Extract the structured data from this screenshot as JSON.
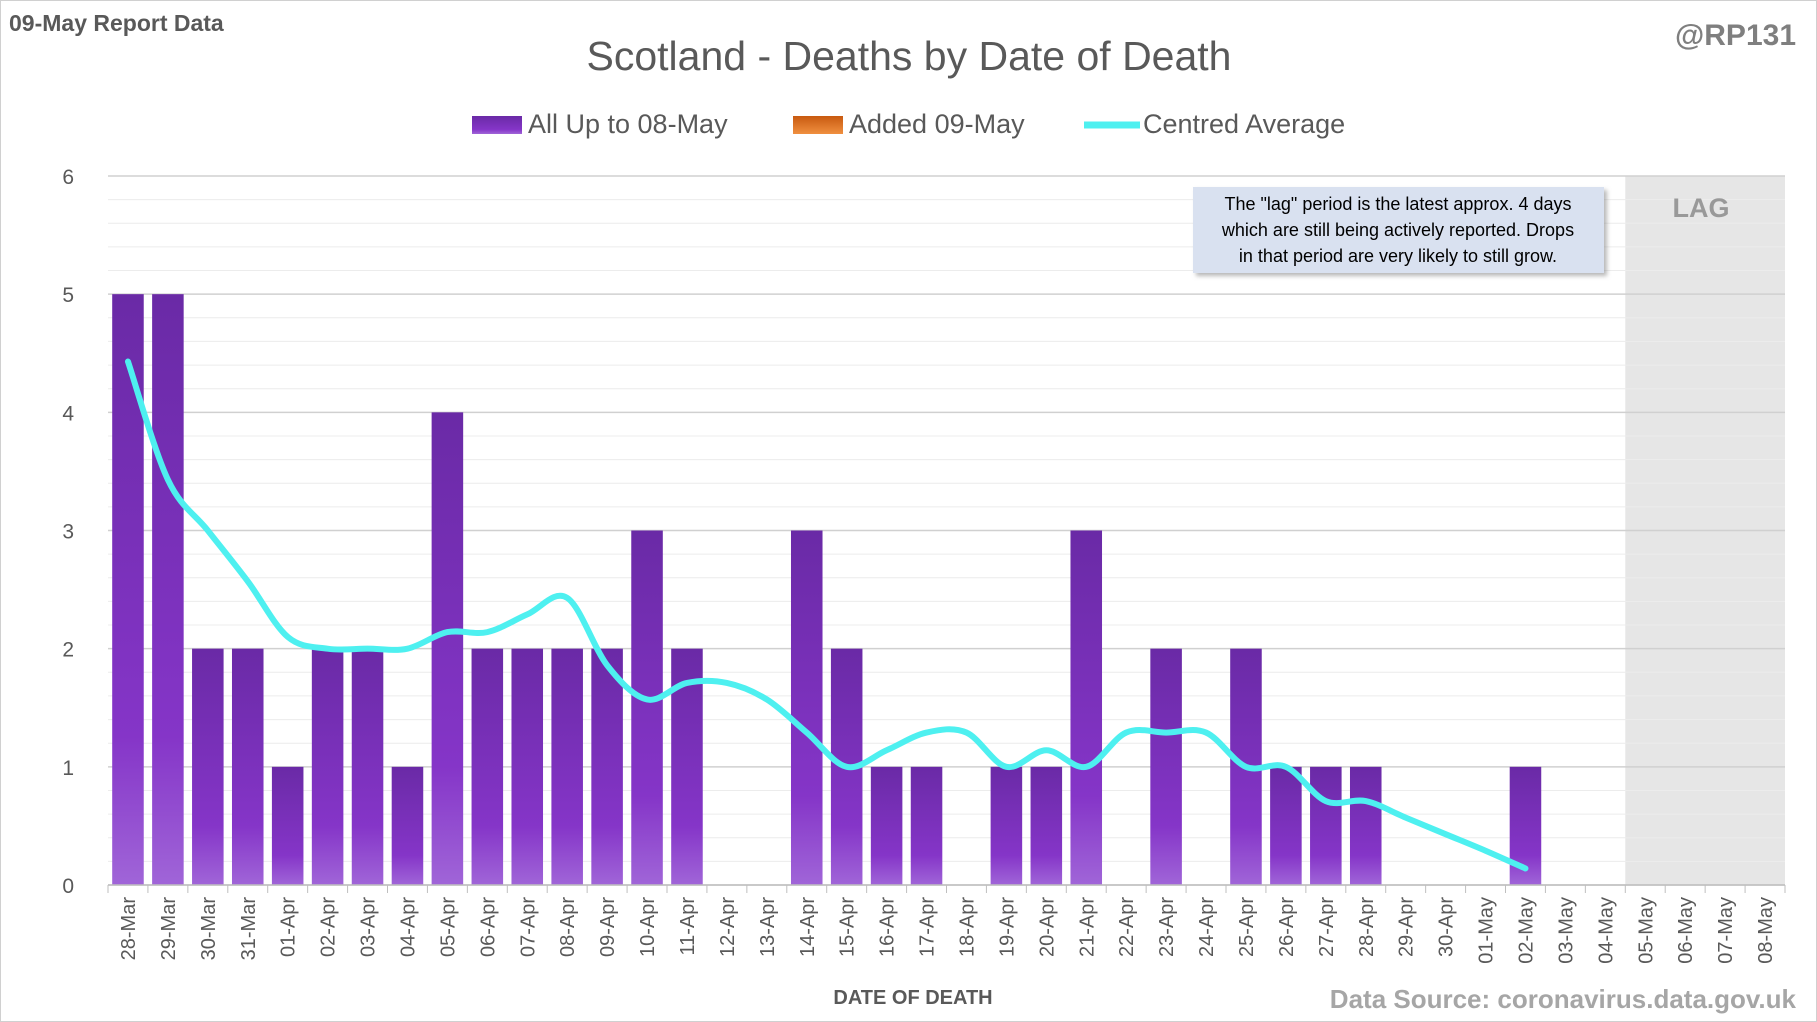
{
  "header": {
    "report_label": "09-May Report Data",
    "handle": "@RP131",
    "source": "Data Source: coronavirus.data.gov.uk"
  },
  "note": {
    "lines": [
      "The \"lag\" period is the latest approx. 4 days",
      "which are still being actively reported.  Drops",
      "in that period are very likely to still grow."
    ],
    "lag_label": "LAG"
  },
  "chart_data": {
    "type": "bar",
    "title": "Scotland - Deaths by Date of Death",
    "xlabel": "DATE OF DEATH",
    "ylabel": "",
    "ylim": [
      0,
      6
    ],
    "yticks": [
      "0",
      "1",
      "2",
      "3",
      "4",
      "5",
      "6"
    ],
    "grid": true,
    "legend_position": "top",
    "lag_period": [
      "05-May",
      "08-May"
    ],
    "categories": [
      "28-Mar",
      "29-Mar",
      "30-Mar",
      "31-Mar",
      "01-Apr",
      "02-Apr",
      "03-Apr",
      "04-Apr",
      "05-Apr",
      "06-Apr",
      "07-Apr",
      "08-Apr",
      "09-Apr",
      "10-Apr",
      "11-Apr",
      "12-Apr",
      "13-Apr",
      "14-Apr",
      "15-Apr",
      "16-Apr",
      "17-Apr",
      "18-Apr",
      "19-Apr",
      "20-Apr",
      "21-Apr",
      "22-Apr",
      "23-Apr",
      "24-Apr",
      "25-Apr",
      "26-Apr",
      "27-Apr",
      "28-Apr",
      "29-Apr",
      "30-Apr",
      "01-May",
      "02-May",
      "03-May",
      "04-May",
      "05-May",
      "06-May",
      "07-May",
      "08-May"
    ],
    "series": [
      {
        "name": "All Up to 08-May",
        "type": "bar",
        "color": "#7B2FBE",
        "values": [
          5,
          5,
          2,
          2,
          1,
          2,
          2,
          1,
          4,
          2,
          2,
          2,
          2,
          3,
          2,
          0,
          0,
          3,
          2,
          1,
          1,
          0,
          1,
          1,
          3,
          0,
          2,
          0,
          2,
          1,
          1,
          1,
          0,
          0,
          0,
          1,
          0,
          0,
          0,
          0,
          0,
          0
        ]
      },
      {
        "name": "Added 09-May",
        "type": "bar",
        "color": "#E07020",
        "values": [
          0,
          0,
          0,
          0,
          0,
          0,
          0,
          0,
          0,
          0,
          0,
          0,
          0,
          0,
          0,
          0,
          0,
          0,
          0,
          0,
          0,
          0,
          0,
          0,
          0,
          0,
          0,
          0,
          0,
          0,
          0,
          0,
          0,
          0,
          0,
          0,
          0,
          0,
          0,
          0,
          0,
          0
        ]
      },
      {
        "name": "Centred Average",
        "type": "line",
        "color": "#4EF0F0",
        "values": [
          4.43,
          3.43,
          3.0,
          2.57,
          2.1,
          2.0,
          2.0,
          2.0,
          2.14,
          2.14,
          2.29,
          2.43,
          1.86,
          1.57,
          1.71,
          1.71,
          1.57,
          1.29,
          1.0,
          1.14,
          1.29,
          1.29,
          1.0,
          1.14,
          1.0,
          1.29,
          1.29,
          1.29,
          1.0,
          1.0,
          0.71,
          0.71,
          0.57,
          0.43,
          0.29,
          0.14,
          null,
          null,
          null,
          null,
          null,
          null
        ]
      }
    ]
  }
}
